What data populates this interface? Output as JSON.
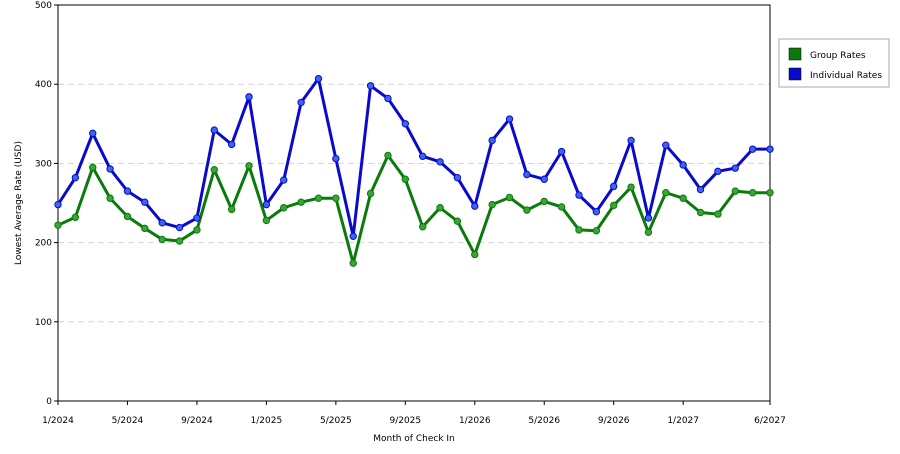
{
  "chart_data": {
    "type": "line",
    "title": "",
    "xlabel": "Month of Check In",
    "ylabel": "Lowest Average Rate (USD)",
    "ylim": [
      0,
      500
    ],
    "yticks": [
      0,
      100,
      200,
      300,
      400,
      500
    ],
    "grid": "horizontal-dashed",
    "legend_position": "right",
    "x_tick_labels": [
      "1/2024",
      "5/2024",
      "9/2024",
      "1/2025",
      "5/2025",
      "9/2025",
      "1/2026",
      "5/2026",
      "9/2026",
      "1/2027",
      "6/2027"
    ],
    "x": [
      "1/2024",
      "2/2024",
      "3/2024",
      "4/2024",
      "5/2024",
      "6/2024",
      "7/2024",
      "8/2024",
      "9/2024",
      "10/2024",
      "11/2024",
      "12/2024",
      "1/2025",
      "2/2025",
      "3/2025",
      "4/2025",
      "5/2025",
      "6/2025",
      "7/2025",
      "8/2025",
      "9/2025",
      "10/2025",
      "11/2025",
      "12/2025",
      "1/2026",
      "2/2026",
      "3/2026",
      "4/2026",
      "5/2026",
      "6/2026",
      "7/2026",
      "8/2026",
      "9/2026",
      "10/2026",
      "11/2026",
      "12/2026",
      "1/2027",
      "2/2027",
      "3/2027",
      "4/2027",
      "5/2027",
      "6/2027"
    ],
    "series": [
      {
        "name": "Group Rates",
        "color": "#0a7a0a",
        "marker_color": "#3aa33a",
        "values": [
          222,
          232,
          295,
          256,
          233,
          218,
          204,
          202,
          216,
          292,
          242,
          297,
          228,
          244,
          251,
          256,
          256,
          174,
          262,
          310,
          280,
          220,
          244,
          227,
          185,
          248,
          257,
          241,
          252,
          245,
          216,
          215,
          247,
          270,
          213,
          263,
          256,
          238,
          236,
          265,
          263,
          263
        ]
      },
      {
        "name": "Individual Rates",
        "color": "#0a0acc",
        "marker_color": "#3a66ee",
        "values": [
          248,
          282,
          338,
          293,
          265,
          251,
          225,
          219,
          231,
          342,
          324,
          384,
          248,
          279,
          377,
          407,
          306,
          208,
          398,
          382,
          350,
          309,
          302,
          282,
          246,
          329,
          356,
          286,
          280,
          315,
          260,
          239,
          271,
          329,
          231,
          323,
          298,
          267,
          290,
          294,
          318,
          318
        ]
      }
    ]
  }
}
